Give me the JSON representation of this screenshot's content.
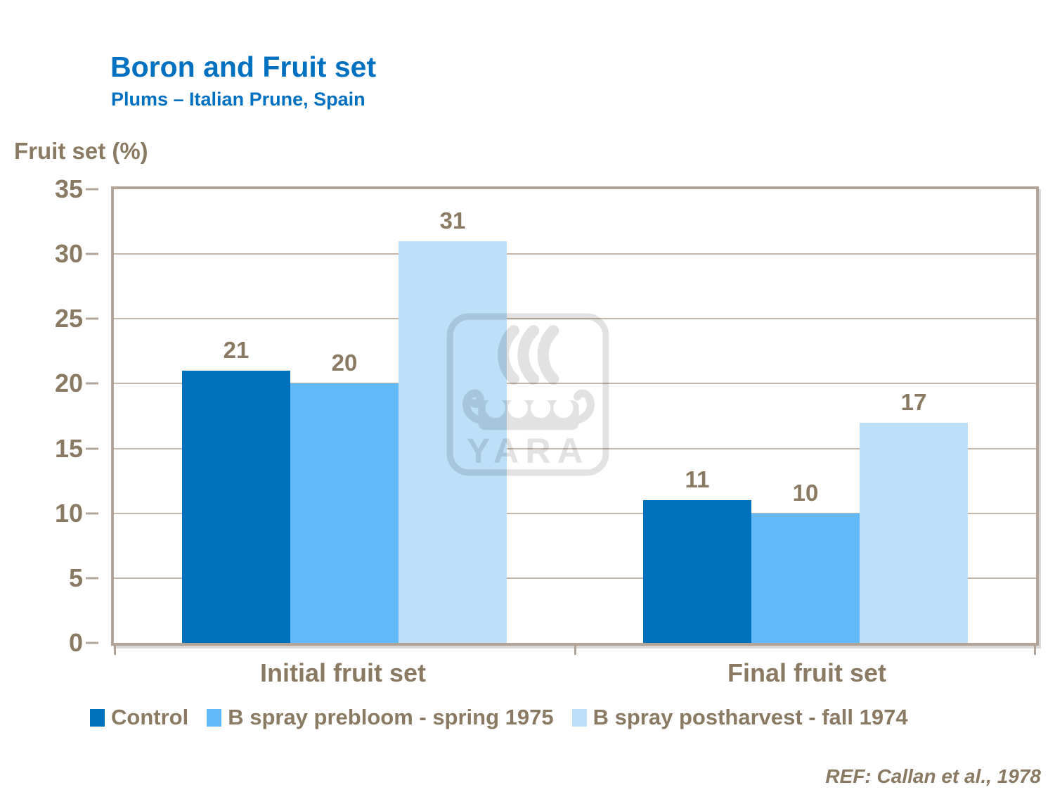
{
  "slide": {
    "title": "Boron and Fruit set",
    "subtitle": "Plums – Italian Prune, Spain",
    "reference": "REF: Callan et al., 1978",
    "watermark_text": "YARA"
  },
  "colors": {
    "title_blue": "#0070C0",
    "text_brown": "#8A7A63",
    "frame": "#B2A498",
    "gridline": "#C4B8AA",
    "watermark_gray": "#E2E2E2"
  },
  "chart_data": {
    "type": "bar",
    "title": "Boron and Fruit set",
    "subtitle": "Plums – Italian Prune, Spain",
    "ylabel": "Fruit set (%)",
    "xlabel": "",
    "categories": [
      "Initial fruit set",
      "Final fruit set"
    ],
    "series": [
      {
        "name": "Control",
        "values": [
          21,
          11
        ],
        "color": "#0071BC"
      },
      {
        "name": "B spray prebloom - spring 1975",
        "values": [
          20,
          10
        ],
        "color": "#63B9F8"
      },
      {
        "name": "B spray postharvest - fall 1974",
        "values": [
          31,
          17
        ],
        "color": "#BDDFF8"
      }
    ],
    "ylim": [
      0,
      35
    ],
    "yticks": [
      0,
      5,
      10,
      15,
      20,
      25,
      30,
      35
    ],
    "grid": true,
    "show_value_labels": true,
    "legend_position": "bottom"
  }
}
